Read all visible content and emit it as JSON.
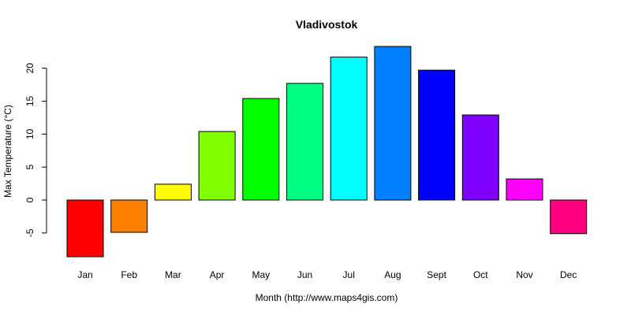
{
  "chart_data": {
    "type": "bar",
    "title": "Vladivostok",
    "xlabel": "Month (http://www.maps4gis.com)",
    "ylabel": "Max Temperature (°C)",
    "categories": [
      "Jan",
      "Feb",
      "Mar",
      "Apr",
      "May",
      "Jun",
      "Jul",
      "Aug",
      "Sept",
      "Oct",
      "Nov",
      "Dec"
    ],
    "values": [
      -8.6,
      -4.9,
      2.4,
      10.4,
      15.4,
      17.7,
      21.7,
      23.3,
      19.7,
      12.9,
      3.2,
      -5.1
    ],
    "colors": [
      "#FF0000",
      "#FF8000",
      "#FFFF00",
      "#80FF00",
      "#00FF00",
      "#00FF80",
      "#00FFFF",
      "#0080FF",
      "#0000FF",
      "#8000FF",
      "#FF00FF",
      "#FF0080"
    ],
    "ylim": [
      -8.6,
      23.3
    ],
    "yticks": [
      -5,
      0,
      5,
      10,
      15,
      20
    ],
    "grid": false,
    "legend": "none"
  }
}
